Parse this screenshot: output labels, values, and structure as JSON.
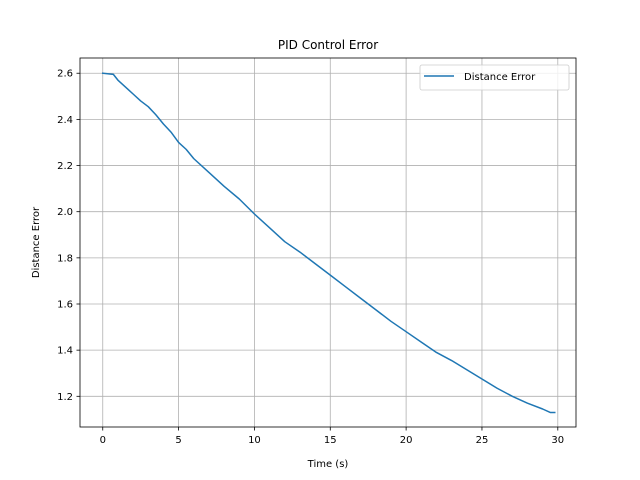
{
  "chart_data": {
    "type": "line",
    "title": "PID Control Error",
    "xlabel": "Time (s)",
    "ylabel": "Distance Error",
    "xlim": [
      -1.5,
      31.2
    ],
    "ylim": [
      1.067,
      2.666
    ],
    "xticks": [
      0,
      5,
      10,
      15,
      20,
      25,
      30
    ],
    "yticks": [
      1.2,
      1.4,
      1.6,
      1.8,
      2.0,
      2.2,
      2.4,
      2.6
    ],
    "ytick_labels": [
      "1.2",
      "1.4",
      "1.6",
      "1.8",
      "2.0",
      "2.2",
      "2.4",
      "2.6"
    ],
    "grid": true,
    "legend_position": "top-right",
    "series": [
      {
        "name": "Distance Error",
        "color": "#1f77b4",
        "x": [
          0,
          0.7,
          1.0,
          1.5,
          2.0,
          2.5,
          3.0,
          3.5,
          4.0,
          4.5,
          5.0,
          5.5,
          6.0,
          7.0,
          8.0,
          9.0,
          10.0,
          11.0,
          12.0,
          13.0,
          14.0,
          15.0,
          16.0,
          17.0,
          18.0,
          19.0,
          20.0,
          21.0,
          22.0,
          23.0,
          24.0,
          25.0,
          26.0,
          27.0,
          28.0,
          29.0,
          29.5,
          29.8
        ],
        "y": [
          2.6,
          2.595,
          2.57,
          2.54,
          2.51,
          2.48,
          2.455,
          2.42,
          2.38,
          2.345,
          2.3,
          2.27,
          2.23,
          2.17,
          2.11,
          2.055,
          1.99,
          1.93,
          1.87,
          1.825,
          1.775,
          1.725,
          1.675,
          1.625,
          1.575,
          1.525,
          1.48,
          1.435,
          1.39,
          1.355,
          1.315,
          1.275,
          1.235,
          1.2,
          1.17,
          1.145,
          1.13,
          1.13
        ]
      }
    ]
  }
}
